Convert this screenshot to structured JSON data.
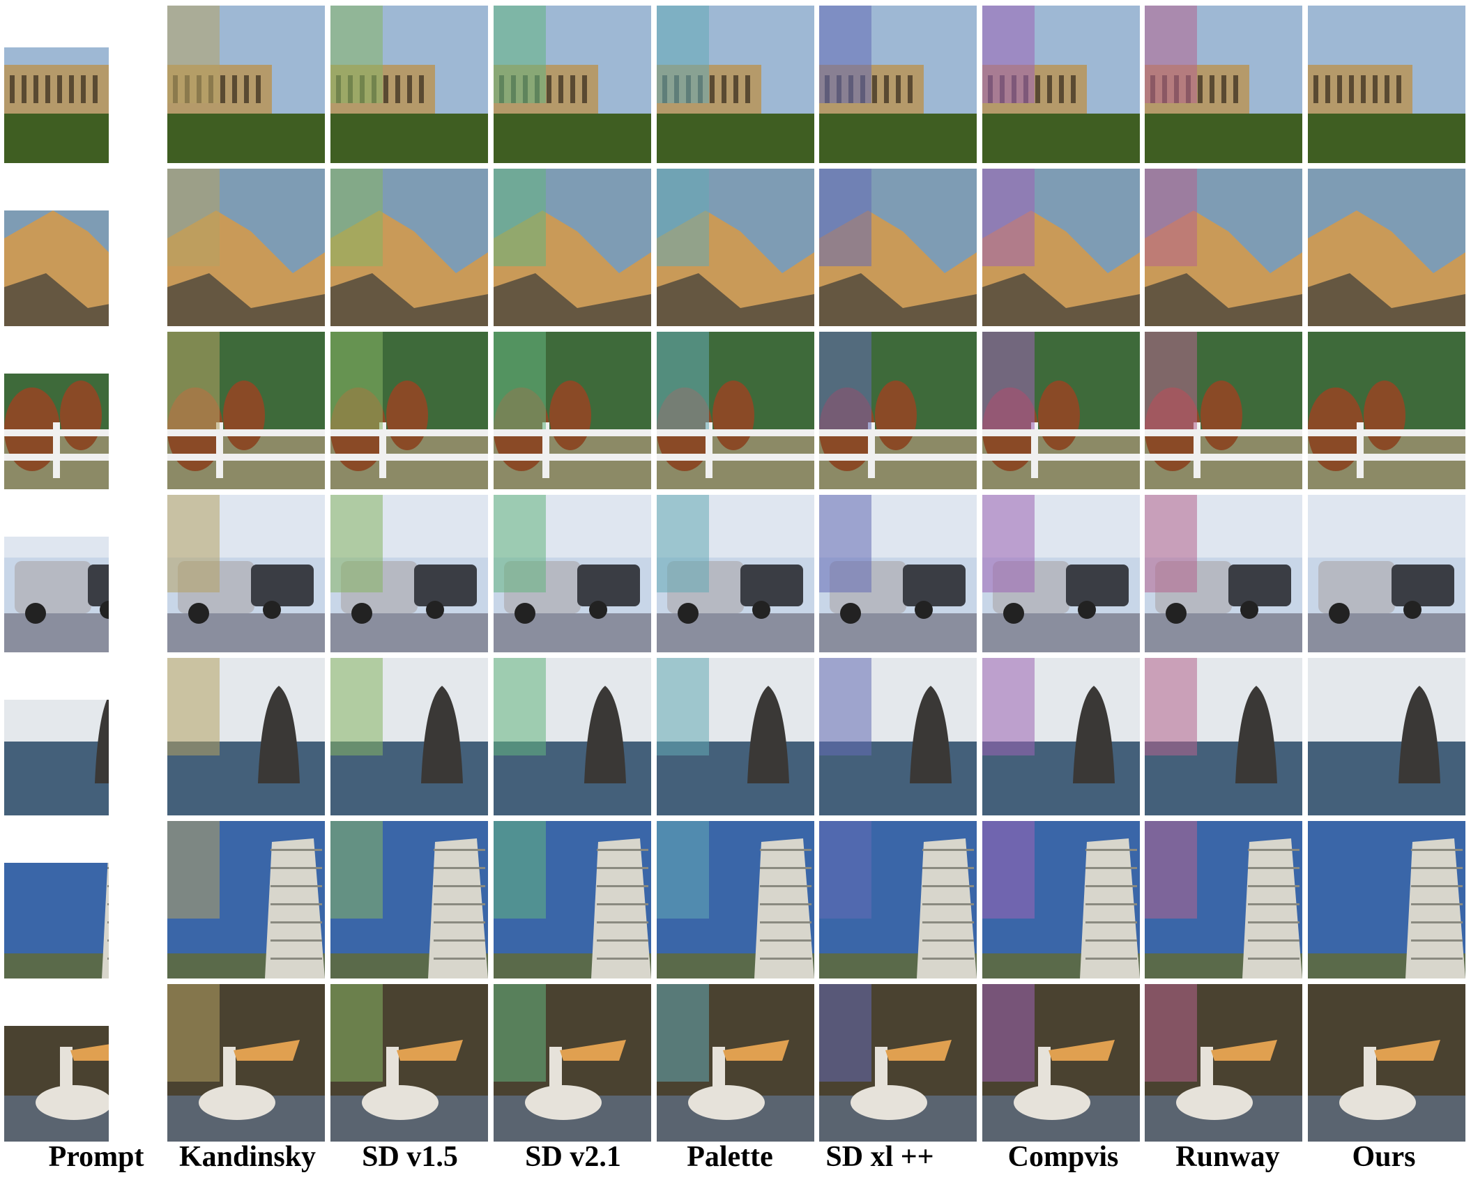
{
  "columns": [
    "Prompt",
    "Kandinsky",
    "SD v1.5",
    "SD v2.1",
    "Palette",
    "SD xl ++",
    "Compvis",
    "Runway",
    "Ours"
  ],
  "rows": [
    {
      "subject": "building",
      "sky": "#9eb8d4",
      "ground": "#3f5e22",
      "obj": "#b59a6a",
      "accent": "#2c3a1e"
    },
    {
      "subject": "mountain",
      "sky": "#7e9cb4",
      "ground": "#5e5a50",
      "obj": "#c99a58",
      "accent": "#3a3a38"
    },
    {
      "subject": "horses",
      "sky": "#3e6a3a",
      "ground": "#8c8a66",
      "obj": "#8a4a26",
      "accent": "#f0f0f0"
    },
    {
      "subject": "car",
      "sky": "#c8d6e8",
      "ground": "#8a8e9e",
      "obj": "#b6b9c2",
      "accent": "#3a3d44"
    },
    {
      "subject": "whale",
      "sky": "#e4e8ec",
      "ground": "#44607a",
      "obj": "#3a3836",
      "accent": "#9fb2c4"
    },
    {
      "subject": "tower",
      "sky": "#3a66a8",
      "ground": "#5a6a4a",
      "obj": "#d8d6cc",
      "accent": "#8a8a80"
    },
    {
      "subject": "pelican",
      "sky": "#4a4230",
      "ground": "#5a6470",
      "obj": "#e6e2da",
      "accent": "#e0a050"
    }
  ]
}
